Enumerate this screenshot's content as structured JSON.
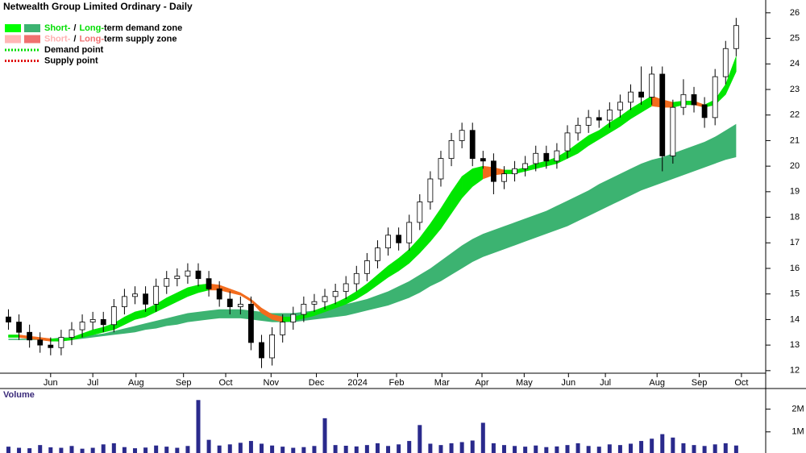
{
  "chart_data": {
    "type": "candlestick",
    "title": "Netwealth Group Limited Ordinary - Daily",
    "xlim": [
      -0.8,
      71.8
    ],
    "xticks": [
      {
        "value": 4.0,
        "label": "Jun"
      },
      {
        "value": 8.0,
        "label": "Jul"
      },
      {
        "value": 12.1,
        "label": "Aug"
      },
      {
        "value": 16.6,
        "label": "Sep"
      },
      {
        "value": 20.6,
        "label": "Oct"
      },
      {
        "value": 24.9,
        "label": "Nov"
      },
      {
        "value": 29.2,
        "label": "Dec"
      },
      {
        "value": 33.1,
        "label": "2024"
      },
      {
        "value": 36.8,
        "label": "Feb"
      },
      {
        "value": 41.1,
        "label": "Mar"
      },
      {
        "value": 44.9,
        "label": "Apr"
      },
      {
        "value": 48.9,
        "label": "May"
      },
      {
        "value": 53.1,
        "label": "Jun"
      },
      {
        "value": 56.6,
        "label": "Jul"
      },
      {
        "value": 61.5,
        "label": "Aug"
      },
      {
        "value": 65.5,
        "label": "Sep"
      },
      {
        "value": 69.5,
        "label": "Oct"
      }
    ],
    "ylim": [
      11.9,
      26.5
    ],
    "yticks": [
      12,
      13,
      14,
      15,
      16,
      17,
      18,
      19,
      20,
      21,
      22,
      23,
      24,
      25,
      26
    ],
    "ohlc": {
      "open": [
        14.1,
        13.9,
        13.5,
        13.2,
        13.0,
        12.9,
        13.3,
        13.6,
        13.9,
        14.0,
        13.8,
        14.5,
        14.9,
        15.0,
        14.6,
        15.3,
        15.6,
        15.7,
        15.9,
        15.6,
        15.2,
        14.8,
        14.5,
        14.6,
        13.1,
        12.5,
        13.4,
        13.9,
        14.2,
        14.6,
        14.7,
        14.9,
        15.1,
        15.4,
        15.8,
        16.3,
        16.8,
        17.3,
        17.0,
        17.8,
        18.6,
        19.5,
        20.3,
        21.0,
        21.4,
        20.3,
        20.2,
        19.4,
        19.7,
        19.9,
        20.1,
        20.5,
        20.2,
        20.6,
        21.3,
        21.6,
        21.9,
        21.8,
        22.2,
        22.5,
        22.9,
        22.7,
        23.6,
        20.4,
        22.3,
        22.8,
        22.4,
        21.9,
        23.5,
        24.6
      ],
      "high": [
        14.4,
        14.2,
        13.8,
        13.5,
        13.3,
        13.6,
        13.9,
        14.2,
        14.3,
        14.3,
        14.8,
        15.2,
        15.3,
        15.3,
        15.6,
        15.9,
        16.0,
        16.2,
        16.2,
        15.9,
        15.5,
        15.1,
        14.9,
        14.9,
        13.4,
        13.7,
        14.2,
        14.5,
        14.9,
        15.0,
        15.2,
        15.4,
        15.7,
        16.1,
        16.6,
        17.1,
        17.6,
        17.6,
        18.1,
        18.9,
        19.8,
        20.6,
        21.3,
        21.7,
        21.7,
        20.6,
        20.5,
        20.0,
        20.2,
        20.4,
        20.8,
        20.8,
        20.9,
        21.6,
        21.9,
        22.2,
        22.2,
        22.5,
        22.8,
        23.2,
        23.9,
        23.9,
        23.9,
        22.6,
        23.4,
        23.1,
        22.7,
        23.8,
        24.9,
        25.8
      ],
      "low": [
        13.6,
        13.2,
        12.9,
        12.7,
        12.6,
        12.6,
        13.0,
        13.3,
        13.6,
        13.5,
        13.5,
        14.2,
        14.6,
        14.3,
        14.3,
        15.0,
        15.3,
        15.4,
        15.3,
        14.9,
        14.5,
        14.2,
        14.2,
        12.8,
        12.1,
        12.2,
        13.1,
        13.6,
        13.9,
        14.3,
        14.4,
        14.6,
        14.8,
        15.1,
        15.5,
        16.0,
        16.5,
        16.7,
        16.7,
        17.5,
        18.3,
        19.2,
        20.0,
        20.7,
        20.0,
        19.9,
        18.9,
        19.1,
        19.4,
        19.6,
        19.8,
        19.9,
        19.9,
        20.3,
        21.0,
        21.3,
        21.5,
        21.5,
        21.9,
        22.2,
        22.4,
        22.4,
        19.8,
        20.1,
        22.0,
        22.1,
        21.5,
        21.6,
        23.2,
        24.3
      ],
      "close": [
        13.9,
        13.5,
        13.2,
        13.0,
        12.9,
        13.3,
        13.6,
        13.9,
        14.0,
        13.8,
        14.5,
        14.9,
        15.0,
        14.6,
        15.3,
        15.6,
        15.7,
        15.9,
        15.6,
        15.2,
        14.8,
        14.5,
        14.6,
        13.1,
        12.5,
        13.4,
        13.9,
        14.2,
        14.6,
        14.7,
        14.9,
        15.1,
        15.4,
        15.8,
        16.3,
        16.8,
        17.3,
        17.0,
        17.8,
        18.6,
        19.5,
        20.3,
        21.0,
        21.4,
        20.3,
        20.2,
        19.4,
        19.7,
        19.9,
        20.1,
        20.5,
        20.2,
        20.6,
        21.3,
        21.6,
        21.9,
        21.8,
        22.2,
        22.5,
        22.9,
        22.7,
        23.6,
        20.4,
        22.3,
        22.8,
        22.4,
        21.9,
        23.5,
        24.6,
        25.5
      ]
    },
    "short_zone": {
      "color": "#00e600",
      "falling_color": "#f26b1d",
      "upper": [
        13.4,
        13.4,
        13.35,
        13.3,
        13.25,
        13.25,
        13.3,
        13.45,
        13.6,
        13.7,
        13.85,
        14.1,
        14.3,
        14.4,
        14.6,
        14.85,
        15.05,
        15.25,
        15.35,
        15.4,
        15.35,
        15.2,
        15.05,
        14.8,
        14.45,
        14.2,
        14.1,
        14.1,
        14.2,
        14.35,
        14.5,
        14.65,
        14.85,
        15.1,
        15.4,
        15.75,
        16.1,
        16.4,
        16.75,
        17.2,
        17.75,
        18.35,
        19.0,
        19.6,
        19.9,
        20.0,
        19.95,
        19.85,
        19.85,
        19.95,
        20.1,
        20.2,
        20.35,
        20.6,
        20.9,
        21.2,
        21.4,
        21.7,
        21.95,
        22.25,
        22.5,
        22.75,
        22.6,
        22.5,
        22.55,
        22.55,
        22.4,
        22.6,
        23.2,
        24.3
      ],
      "lower": [
        13.3,
        13.3,
        13.25,
        13.2,
        13.15,
        13.15,
        13.2,
        13.3,
        13.4,
        13.5,
        13.6,
        13.8,
        14.0,
        14.1,
        14.3,
        14.5,
        14.7,
        14.9,
        15.05,
        15.15,
        15.15,
        15.05,
        14.95,
        14.7,
        14.25,
        14.0,
        13.9,
        13.95,
        14.05,
        14.15,
        14.3,
        14.45,
        14.6,
        14.8,
        15.05,
        15.35,
        15.65,
        15.9,
        16.2,
        16.6,
        17.05,
        17.55,
        18.15,
        18.75,
        19.2,
        19.5,
        19.65,
        19.7,
        19.7,
        19.8,
        19.9,
        20.0,
        20.1,
        20.3,
        20.5,
        20.8,
        21.05,
        21.3,
        21.55,
        21.85,
        22.1,
        22.35,
        22.3,
        22.3,
        22.4,
        22.4,
        22.3,
        22.4,
        22.8,
        23.7
      ]
    },
    "long_zone": {
      "color": "#3cb371",
      "upper": [
        13.25,
        13.25,
        13.25,
        13.25,
        13.25,
        13.3,
        13.3,
        13.35,
        13.4,
        13.45,
        13.55,
        13.65,
        13.75,
        13.85,
        13.95,
        14.05,
        14.15,
        14.25,
        14.3,
        14.35,
        14.4,
        14.4,
        14.4,
        14.35,
        14.3,
        14.25,
        14.25,
        14.25,
        14.3,
        14.35,
        14.4,
        14.5,
        14.6,
        14.7,
        14.8,
        14.95,
        15.1,
        15.3,
        15.5,
        15.75,
        16.0,
        16.3,
        16.6,
        16.9,
        17.15,
        17.35,
        17.5,
        17.65,
        17.8,
        17.95,
        18.1,
        18.25,
        18.45,
        18.65,
        18.85,
        19.05,
        19.3,
        19.5,
        19.7,
        19.9,
        20.1,
        20.25,
        20.35,
        20.5,
        20.65,
        20.8,
        20.95,
        21.15,
        21.4,
        21.65
      ],
      "lower": [
        13.2,
        13.2,
        13.2,
        13.2,
        13.2,
        13.2,
        13.2,
        13.25,
        13.3,
        13.35,
        13.4,
        13.45,
        13.5,
        13.6,
        13.65,
        13.75,
        13.8,
        13.9,
        13.95,
        14.0,
        14.05,
        14.05,
        14.05,
        14.0,
        13.95,
        13.9,
        13.9,
        13.9,
        13.95,
        14.0,
        14.05,
        14.1,
        14.15,
        14.25,
        14.35,
        14.45,
        14.55,
        14.7,
        14.85,
        15.05,
        15.3,
        15.5,
        15.75,
        16.0,
        16.25,
        16.45,
        16.6,
        16.75,
        16.9,
        17.05,
        17.2,
        17.35,
        17.5,
        17.65,
        17.85,
        18.05,
        18.25,
        18.45,
        18.65,
        18.85,
        19.05,
        19.2,
        19.35,
        19.5,
        19.65,
        19.8,
        19.95,
        20.1,
        20.25,
        20.35
      ]
    },
    "legend": [
      {
        "swatches": [
          "#00ff00",
          "#3cb371"
        ],
        "parts": [
          {
            "text": "Short-",
            "color": "#00dd00"
          },
          {
            "text": "/",
            "color": "#000000"
          },
          {
            "text": "Long-",
            "color": "#00dd00"
          },
          {
            "text": "term demand zone",
            "color": "#000000"
          }
        ]
      },
      {
        "swatches": [
          "#ffb6b6",
          "#f07070"
        ],
        "parts": [
          {
            "text": "Short-",
            "color": "#ffb0b0"
          },
          {
            "text": "/",
            "color": "#000000"
          },
          {
            "text": "Long-",
            "color": "#f07070"
          },
          {
            "text": "term supply zone",
            "color": "#000000"
          }
        ]
      },
      {
        "line_color": "#00dd00",
        "parts": [
          {
            "text": "Demand point",
            "color": "#000000"
          }
        ]
      },
      {
        "line_color": "#e00000",
        "parts": [
          {
            "text": "Supply point",
            "color": "#000000"
          }
        ]
      }
    ],
    "volume": {
      "label": "Volume",
      "color": "#2a2a8c",
      "ylim": [
        0,
        2800000
      ],
      "yticks": [
        {
          "value": 1000000,
          "label": "1M"
        },
        {
          "value": 2000000,
          "label": "2M"
        }
      ],
      "values": [
        350000,
        300000,
        280000,
        420000,
        320000,
        300000,
        380000,
        260000,
        300000,
        450000,
        500000,
        330000,
        280000,
        310000,
        400000,
        350000,
        300000,
        380000,
        2400000,
        650000,
        400000,
        450000,
        520000,
        600000,
        480000,
        400000,
        350000,
        300000,
        330000,
        380000,
        1600000,
        420000,
        390000,
        360000,
        420000,
        500000,
        380000,
        450000,
        600000,
        1300000,
        480000,
        420000,
        500000,
        550000,
        620000,
        1400000,
        500000,
        420000,
        380000,
        350000,
        400000,
        330000,
        360000,
        420000,
        500000,
        380000,
        350000,
        450000,
        420000,
        480000,
        600000,
        700000,
        900000,
        750000,
        500000,
        420000,
        380000,
        450000,
        500000,
        400000
      ]
    }
  }
}
